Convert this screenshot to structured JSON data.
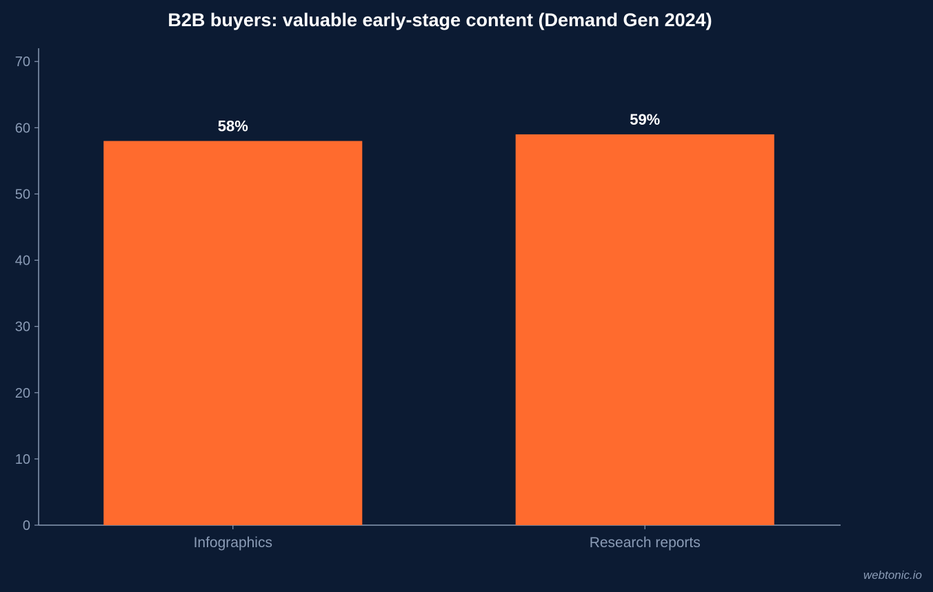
{
  "chart_data": {
    "type": "bar",
    "title": "B2B buyers: valuable early-stage content (Demand Gen 2024)",
    "categories": [
      "Infographics",
      "Research reports"
    ],
    "values": [
      58,
      59
    ],
    "value_labels": [
      "58%",
      "59%"
    ],
    "xlabel": "",
    "ylabel": "",
    "ylim": [
      0,
      72
    ],
    "yticks": [
      0,
      10,
      20,
      30,
      40,
      50,
      60,
      70
    ],
    "grid": false,
    "legend": "none",
    "colors": {
      "background": "#0c1b33",
      "bar": "#ff6b2e",
      "axis": "#8a9bb5",
      "tick_text": "#8a9bb5",
      "title": "#ffffff",
      "data_label": "#ffffff"
    }
  },
  "watermark": "webtonic.io"
}
